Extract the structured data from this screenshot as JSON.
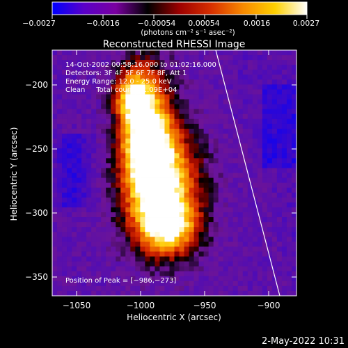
{
  "colorbar": {
    "ticks": [
      "−0.0027",
      "−0.0016",
      "−0.00054",
      "0.00054",
      "0.0016",
      "0.0027"
    ],
    "unit_label": "(photons cm⁻² s⁻¹ asec⁻²)",
    "colormap": [
      "#0000ff",
      "#5a00c8",
      "#7a00a0",
      "#000000",
      "#9e0000",
      "#d83000",
      "#f88a00",
      "#ffd000",
      "#ffffff"
    ]
  },
  "plot": {
    "title": "Reconstructed RHESSI Image",
    "xlabel": "Heliocentric X (arcsec)",
    "ylabel": "Heliocentric Y (arcsec)",
    "x_ticks": [
      "−1050",
      "−1000",
      "−950",
      "−900"
    ],
    "y_ticks": [
      "−200",
      "−250",
      "−300",
      "−350"
    ],
    "xlim": [
      -1068,
      -880
    ],
    "ylim": [
      -370,
      -178
    ],
    "annotations": [
      "14-Oct-2002 00:58:16.000 to 01:02:16.000",
      "Detectors: 3F 4F 5F 6F 7F 8F, Att 1",
      "Energy Range: 12.0 - 25.0 keV",
      "Clean     Total counts: 1.09E+04"
    ],
    "peak_label": "Position of Peak = [−986,−273]",
    "peak": [
      -986,
      -273
    ],
    "limb_line_color": "#ffffff"
  },
  "footer": {
    "timestamp": "2-May-2022 10:31"
  }
}
